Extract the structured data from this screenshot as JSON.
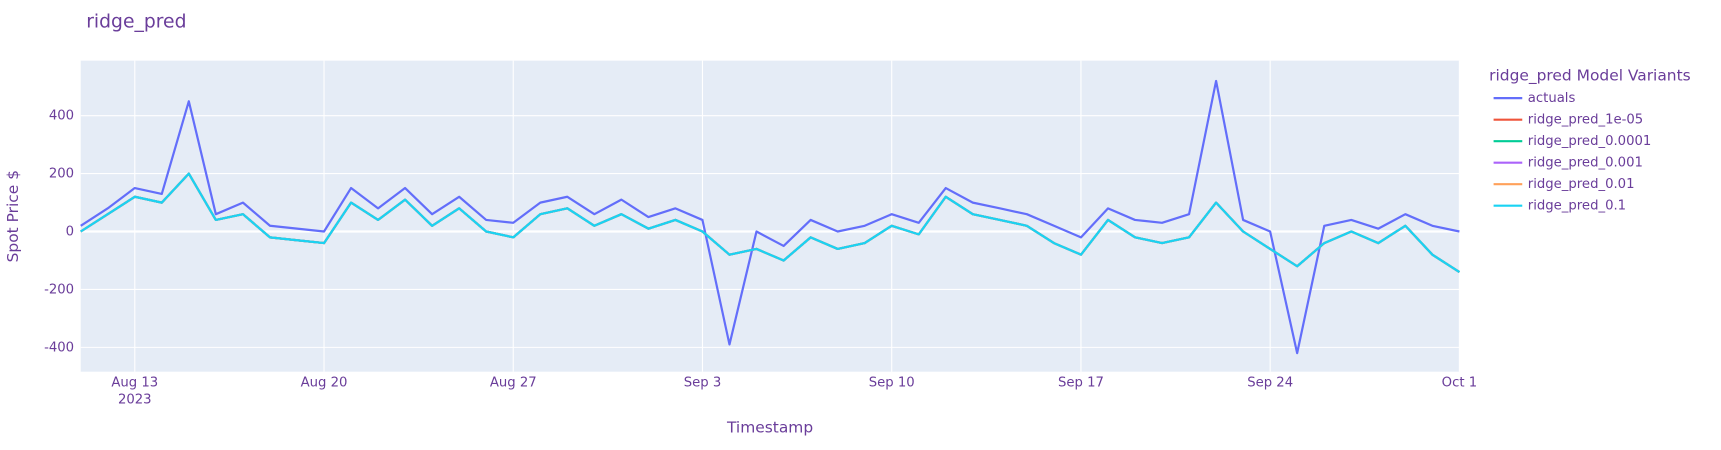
{
  "chart_data": {
    "type": "line",
    "title": "ridge_pred",
    "x_label": "Timestamp",
    "y_label": "Spot Price $",
    "legend_title": "ridge_pred Model Variants",
    "x": [
      "2023-08-11",
      "2023-08-12",
      "2023-08-13",
      "2023-08-14",
      "2023-08-15",
      "2023-08-16",
      "2023-08-17",
      "2023-08-18",
      "2023-08-19",
      "2023-08-20",
      "2023-08-21",
      "2023-08-22",
      "2023-08-23",
      "2023-08-24",
      "2023-08-25",
      "2023-08-26",
      "2023-08-27",
      "2023-08-28",
      "2023-08-29",
      "2023-08-30",
      "2023-08-31",
      "2023-09-01",
      "2023-09-02",
      "2023-09-03",
      "2023-09-04",
      "2023-09-05",
      "2023-09-06",
      "2023-09-07",
      "2023-09-08",
      "2023-09-09",
      "2023-09-10",
      "2023-09-11",
      "2023-09-12",
      "2023-09-13",
      "2023-09-14",
      "2023-09-15",
      "2023-09-16",
      "2023-09-17",
      "2023-09-18",
      "2023-09-19",
      "2023-09-20",
      "2023-09-21",
      "2023-09-22",
      "2023-09-23",
      "2023-09-24",
      "2023-09-25",
      "2023-09-26",
      "2023-09-27",
      "2023-09-28",
      "2023-09-29",
      "2023-09-30",
      "2023-10-01"
    ],
    "series": [
      {
        "name": "actuals",
        "color": "#636efa",
        "values": [
          20,
          80,
          150,
          130,
          450,
          60,
          100,
          20,
          10,
          0,
          150,
          80,
          150,
          60,
          120,
          40,
          30,
          100,
          120,
          60,
          110,
          50,
          80,
          40,
          -390,
          0,
          -50,
          40,
          0,
          20,
          60,
          30,
          150,
          100,
          80,
          60,
          20,
          -20,
          80,
          40,
          30,
          60,
          520,
          40,
          0,
          -420,
          20,
          40,
          10,
          60,
          20,
          0
        ]
      },
      {
        "name": "ridge_pred_1e-05",
        "color": "#ef553b",
        "values": [
          0,
          60,
          120,
          100,
          200,
          40,
          60,
          -20,
          -30,
          -40,
          100,
          40,
          110,
          20,
          80,
          0,
          -20,
          60,
          80,
          20,
          60,
          10,
          40,
          0,
          -80,
          -60,
          -100,
          -20,
          -60,
          -40,
          20,
          -10,
          120,
          60,
          40,
          20,
          -40,
          -80,
          40,
          -20,
          -40,
          -20,
          100,
          0,
          -60,
          -120,
          -40,
          0,
          -40,
          20,
          -80,
          -140
        ]
      },
      {
        "name": "ridge_pred_0.0001",
        "color": "#00cc96",
        "values": [
          0,
          60,
          120,
          100,
          200,
          40,
          60,
          -20,
          -30,
          -40,
          100,
          40,
          110,
          20,
          80,
          0,
          -20,
          60,
          80,
          20,
          60,
          10,
          40,
          0,
          -80,
          -60,
          -100,
          -20,
          -60,
          -40,
          20,
          -10,
          120,
          60,
          40,
          20,
          -40,
          -80,
          40,
          -20,
          -40,
          -20,
          100,
          0,
          -60,
          -120,
          -40,
          0,
          -40,
          20,
          -80,
          -140
        ]
      },
      {
        "name": "ridge_pred_0.001",
        "color": "#ab63fa",
        "values": [
          0,
          60,
          120,
          100,
          200,
          40,
          60,
          -20,
          -30,
          -40,
          100,
          40,
          110,
          20,
          80,
          0,
          -20,
          60,
          80,
          20,
          60,
          10,
          40,
          0,
          -80,
          -60,
          -100,
          -20,
          -60,
          -40,
          20,
          -10,
          120,
          60,
          40,
          20,
          -40,
          -80,
          40,
          -20,
          -40,
          -20,
          100,
          0,
          -60,
          -120,
          -40,
          0,
          -40,
          20,
          -80,
          -140
        ]
      },
      {
        "name": "ridge_pred_0.01",
        "color": "#ffa15a",
        "values": [
          0,
          60,
          120,
          100,
          200,
          40,
          60,
          -20,
          -30,
          -40,
          100,
          40,
          110,
          20,
          80,
          0,
          -20,
          60,
          80,
          20,
          60,
          10,
          40,
          0,
          -80,
          -60,
          -100,
          -20,
          -60,
          -40,
          20,
          -10,
          120,
          60,
          40,
          20,
          -40,
          -80,
          40,
          -20,
          -40,
          -20,
          100,
          0,
          -60,
          -120,
          -40,
          0,
          -40,
          20,
          -80,
          -140
        ]
      },
      {
        "name": "ridge_pred_0.1",
        "color": "#19d3f3",
        "values": [
          0,
          60,
          120,
          100,
          200,
          40,
          60,
          -20,
          -30,
          -40,
          100,
          40,
          110,
          20,
          80,
          0,
          -20,
          60,
          80,
          20,
          60,
          10,
          40,
          0,
          -80,
          -60,
          -100,
          -20,
          -60,
          -40,
          20,
          -10,
          120,
          60,
          40,
          20,
          -40,
          -80,
          40,
          -20,
          -40,
          -20,
          100,
          0,
          -60,
          -120,
          -40,
          0,
          -40,
          20,
          -80,
          -140
        ]
      }
    ],
    "xlim": [
      "2023-08-11",
      "2023-10-01"
    ],
    "xticks": [
      {
        "value": "2023-08-13",
        "label": "Aug 13",
        "sublabel": "2023"
      },
      {
        "value": "2023-08-20",
        "label": "Aug 20"
      },
      {
        "value": "2023-08-27",
        "label": "Aug 27"
      },
      {
        "value": "2023-09-03",
        "label": "Sep 3"
      },
      {
        "value": "2023-09-10",
        "label": "Sep 10"
      },
      {
        "value": "2023-09-17",
        "label": "Sep 17"
      },
      {
        "value": "2023-09-24",
        "label": "Sep 24"
      },
      {
        "value": "2023-10-01",
        "label": "Oct 1"
      }
    ],
    "ylim": [
      -484,
      590
    ],
    "yticks": [
      -400,
      -200,
      0,
      200,
      400
    ],
    "grid": true
  }
}
